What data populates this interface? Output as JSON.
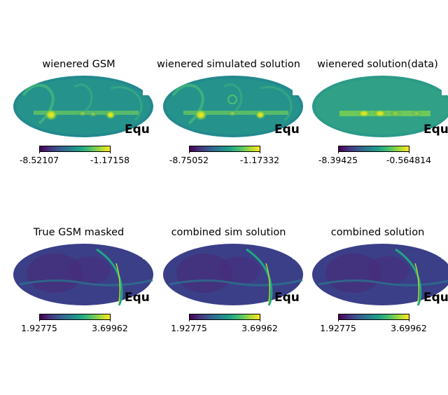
{
  "figure": {
    "coordinate_label": "Equ",
    "panels": [
      {
        "title": "wienered GSM",
        "cbar_min": "-8.52107",
        "cbar_max": "-1.17158",
        "style": "wiener"
      },
      {
        "title": "wienered simulated solution",
        "cbar_min": "-8.75052",
        "cbar_max": "-1.17332",
        "style": "wiener"
      },
      {
        "title": "wienered solution(data)",
        "cbar_min": "-8.39425",
        "cbar_max": "-0.564814",
        "style": "wiener-data"
      },
      {
        "title": "True GSM masked",
        "cbar_min": "1.92775",
        "cbar_max": "3.69962",
        "style": "gsm"
      },
      {
        "title": "combined sim solution",
        "cbar_min": "1.92775",
        "cbar_max": "3.69962",
        "style": "gsm"
      },
      {
        "title": "combined solution",
        "cbar_min": "1.92775",
        "cbar_max": "3.69962",
        "style": "gsm"
      }
    ],
    "colormap": "viridis",
    "colors": {
      "low": "#440154",
      "mid": "#21918c",
      "high": "#fde725"
    }
  }
}
